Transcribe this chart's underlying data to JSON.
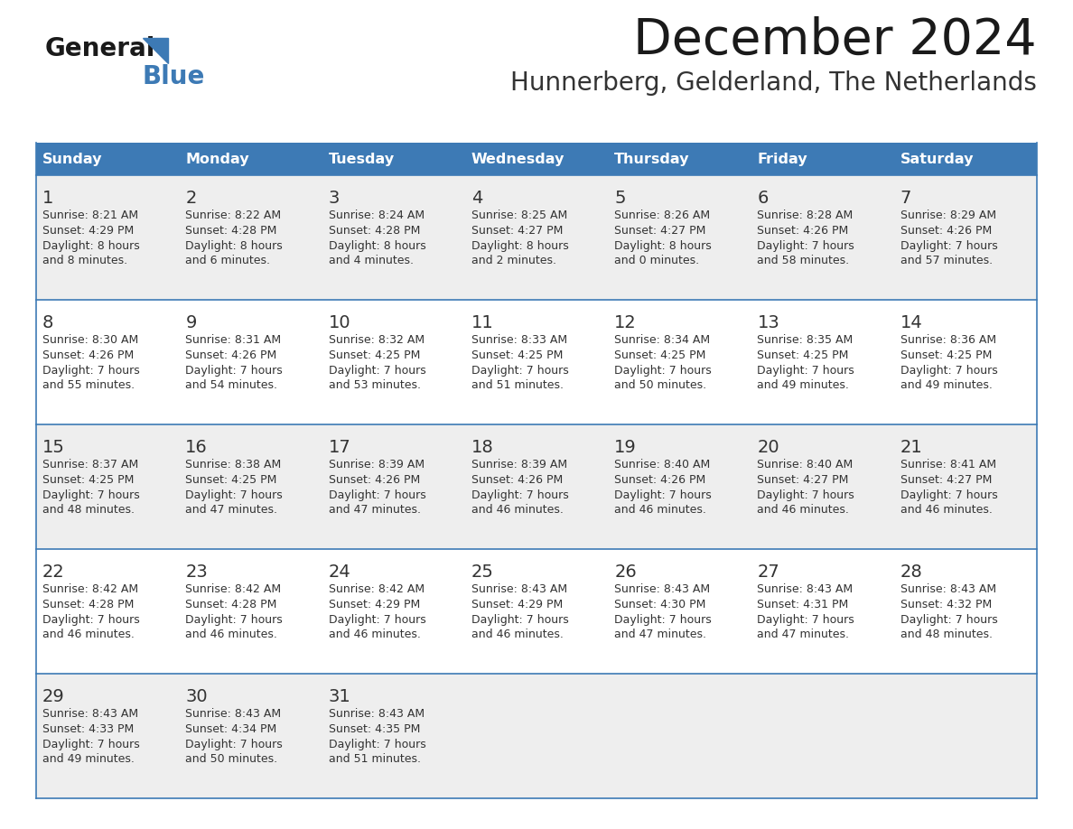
{
  "title": "December 2024",
  "subtitle": "Hunnerberg, Gelderland, The Netherlands",
  "header_bg": "#3d7ab5",
  "header_text": "#FFFFFF",
  "row_bg_odd": "#eeeeee",
  "row_bg_even": "#FFFFFF",
  "cell_border_color": "#3d7ab5",
  "text_color": "#333333",
  "days_of_week": [
    "Sunday",
    "Monday",
    "Tuesday",
    "Wednesday",
    "Thursday",
    "Friday",
    "Saturday"
  ],
  "weeks": [
    [
      {
        "day": "1",
        "sunrise": "8:21 AM",
        "sunset": "4:29 PM",
        "daylight1": "8 hours",
        "daylight2": "and 8 minutes."
      },
      {
        "day": "2",
        "sunrise": "8:22 AM",
        "sunset": "4:28 PM",
        "daylight1": "8 hours",
        "daylight2": "and 6 minutes."
      },
      {
        "day": "3",
        "sunrise": "8:24 AM",
        "sunset": "4:28 PM",
        "daylight1": "8 hours",
        "daylight2": "and 4 minutes."
      },
      {
        "day": "4",
        "sunrise": "8:25 AM",
        "sunset": "4:27 PM",
        "daylight1": "8 hours",
        "daylight2": "and 2 minutes."
      },
      {
        "day": "5",
        "sunrise": "8:26 AM",
        "sunset": "4:27 PM",
        "daylight1": "8 hours",
        "daylight2": "and 0 minutes."
      },
      {
        "day": "6",
        "sunrise": "8:28 AM",
        "sunset": "4:26 PM",
        "daylight1": "7 hours",
        "daylight2": "and 58 minutes."
      },
      {
        "day": "7",
        "sunrise": "8:29 AM",
        "sunset": "4:26 PM",
        "daylight1": "7 hours",
        "daylight2": "and 57 minutes."
      }
    ],
    [
      {
        "day": "8",
        "sunrise": "8:30 AM",
        "sunset": "4:26 PM",
        "daylight1": "7 hours",
        "daylight2": "and 55 minutes."
      },
      {
        "day": "9",
        "sunrise": "8:31 AM",
        "sunset": "4:26 PM",
        "daylight1": "7 hours",
        "daylight2": "and 54 minutes."
      },
      {
        "day": "10",
        "sunrise": "8:32 AM",
        "sunset": "4:25 PM",
        "daylight1": "7 hours",
        "daylight2": "and 53 minutes."
      },
      {
        "day": "11",
        "sunrise": "8:33 AM",
        "sunset": "4:25 PM",
        "daylight1": "7 hours",
        "daylight2": "and 51 minutes."
      },
      {
        "day": "12",
        "sunrise": "8:34 AM",
        "sunset": "4:25 PM",
        "daylight1": "7 hours",
        "daylight2": "and 50 minutes."
      },
      {
        "day": "13",
        "sunrise": "8:35 AM",
        "sunset": "4:25 PM",
        "daylight1": "7 hours",
        "daylight2": "and 49 minutes."
      },
      {
        "day": "14",
        "sunrise": "8:36 AM",
        "sunset": "4:25 PM",
        "daylight1": "7 hours",
        "daylight2": "and 49 minutes."
      }
    ],
    [
      {
        "day": "15",
        "sunrise": "8:37 AM",
        "sunset": "4:25 PM",
        "daylight1": "7 hours",
        "daylight2": "and 48 minutes."
      },
      {
        "day": "16",
        "sunrise": "8:38 AM",
        "sunset": "4:25 PM",
        "daylight1": "7 hours",
        "daylight2": "and 47 minutes."
      },
      {
        "day": "17",
        "sunrise": "8:39 AM",
        "sunset": "4:26 PM",
        "daylight1": "7 hours",
        "daylight2": "and 47 minutes."
      },
      {
        "day": "18",
        "sunrise": "8:39 AM",
        "sunset": "4:26 PM",
        "daylight1": "7 hours",
        "daylight2": "and 46 minutes."
      },
      {
        "day": "19",
        "sunrise": "8:40 AM",
        "sunset": "4:26 PM",
        "daylight1": "7 hours",
        "daylight2": "and 46 minutes."
      },
      {
        "day": "20",
        "sunrise": "8:40 AM",
        "sunset": "4:27 PM",
        "daylight1": "7 hours",
        "daylight2": "and 46 minutes."
      },
      {
        "day": "21",
        "sunrise": "8:41 AM",
        "sunset": "4:27 PM",
        "daylight1": "7 hours",
        "daylight2": "and 46 minutes."
      }
    ],
    [
      {
        "day": "22",
        "sunrise": "8:42 AM",
        "sunset": "4:28 PM",
        "daylight1": "7 hours",
        "daylight2": "and 46 minutes."
      },
      {
        "day": "23",
        "sunrise": "8:42 AM",
        "sunset": "4:28 PM",
        "daylight1": "7 hours",
        "daylight2": "and 46 minutes."
      },
      {
        "day": "24",
        "sunrise": "8:42 AM",
        "sunset": "4:29 PM",
        "daylight1": "7 hours",
        "daylight2": "and 46 minutes."
      },
      {
        "day": "25",
        "sunrise": "8:43 AM",
        "sunset": "4:29 PM",
        "daylight1": "7 hours",
        "daylight2": "and 46 minutes."
      },
      {
        "day": "26",
        "sunrise": "8:43 AM",
        "sunset": "4:30 PM",
        "daylight1": "7 hours",
        "daylight2": "and 47 minutes."
      },
      {
        "day": "27",
        "sunrise": "8:43 AM",
        "sunset": "4:31 PM",
        "daylight1": "7 hours",
        "daylight2": "and 47 minutes."
      },
      {
        "day": "28",
        "sunrise": "8:43 AM",
        "sunset": "4:32 PM",
        "daylight1": "7 hours",
        "daylight2": "and 48 minutes."
      }
    ],
    [
      {
        "day": "29",
        "sunrise": "8:43 AM",
        "sunset": "4:33 PM",
        "daylight1": "7 hours",
        "daylight2": "and 49 minutes."
      },
      {
        "day": "30",
        "sunrise": "8:43 AM",
        "sunset": "4:34 PM",
        "daylight1": "7 hours",
        "daylight2": "and 50 minutes."
      },
      {
        "day": "31",
        "sunrise": "8:43 AM",
        "sunset": "4:35 PM",
        "daylight1": "7 hours",
        "daylight2": "and 51 minutes."
      },
      null,
      null,
      null,
      null
    ]
  ]
}
